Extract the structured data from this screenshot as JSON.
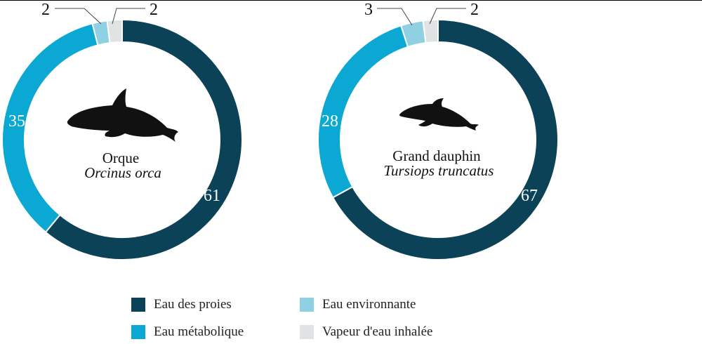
{
  "colors": {
    "eau_des_proies": "#0b4257",
    "eau_metabolique": "#0aa8d3",
    "eau_environnante": "#8fd1e2",
    "vapeur": "#dfe3e4"
  },
  "chart_data": [
    {
      "type": "donut",
      "name": "Orque",
      "species": "Orcinus orca",
      "icon": "orca-icon",
      "categories": [
        "Eau des proies",
        "Eau métabolique",
        "Eau environnante",
        "Vapeur d'eau inhalée"
      ],
      "values": [
        61,
        35,
        2,
        2
      ]
    },
    {
      "type": "donut",
      "name": "Grand dauphin",
      "species": "Tursiops truncatus",
      "icon": "dolphin-icon",
      "categories": [
        "Eau des proies",
        "Eau métabolique",
        "Eau environnante",
        "Vapeur d'eau inhalée"
      ],
      "values": [
        67,
        28,
        3,
        2
      ]
    }
  ],
  "legend": [
    {
      "label": "Eau des proies",
      "color": "#0b4257"
    },
    {
      "label": "Eau environnante",
      "color": "#8fd1e2"
    },
    {
      "label": "Eau métabolique",
      "color": "#0aa8d3"
    },
    {
      "label": "Vapeur d'eau inhalée",
      "color": "#dfe3e4"
    }
  ]
}
